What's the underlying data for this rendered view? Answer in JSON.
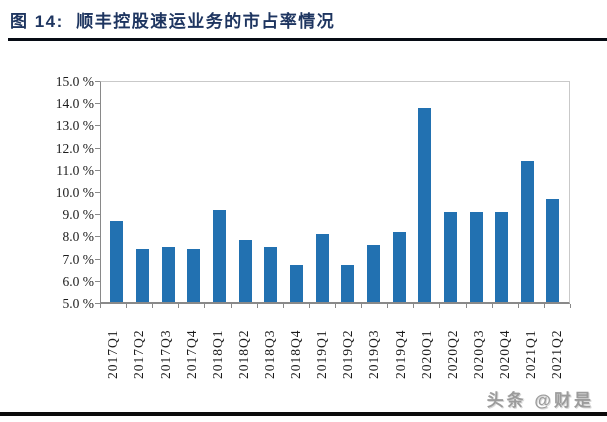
{
  "header": {
    "title": "图 14:  顺丰控股速运业务的市占率情况"
  },
  "watermark": {
    "text": "头条 @财是"
  },
  "colors": {
    "bar": "#2271b1",
    "title": "#1e3560",
    "title_rule": "#060b14",
    "axis": "#898989",
    "frame": "#c9c9c9",
    "tick_text": "#1c1c1c",
    "watermark": "#9c9c9c",
    "bottom_rule": "#0b0b0b"
  },
  "chart_data": {
    "type": "bar",
    "title": "顺丰控股速运业务的市占率情况",
    "categories": [
      "2017Q1",
      "2017Q2",
      "2017Q3",
      "2017Q4",
      "2018Q1",
      "2018Q2",
      "2018Q3",
      "2018Q4",
      "2019Q1",
      "2019Q2",
      "2019Q3",
      "2019Q4",
      "2020Q1",
      "2020Q2",
      "2020Q3",
      "2020Q4",
      "2021Q1",
      "2021Q2"
    ],
    "values": [
      8.7,
      7.4,
      7.5,
      7.4,
      9.2,
      7.8,
      7.5,
      6.7,
      8.1,
      6.7,
      7.6,
      8.2,
      13.8,
      9.1,
      9.1,
      9.1,
      11.4,
      9.7
    ],
    "unit": "%",
    "xlabel": "",
    "ylabel": "",
    "ylim": [
      5.0,
      15.0
    ],
    "ytick_step": 1.0,
    "ytick_labels": [
      "15.0 %",
      "14.0 %",
      "13.0 %",
      "12.0 %",
      "11.0 %",
      "10.0 %",
      "9.0 %",
      "8.0 %",
      "7.0 %",
      "6.0 %",
      "5.0 %"
    ],
    "grid": false,
    "legend_position": "none",
    "bar_color": "#2271b1"
  }
}
